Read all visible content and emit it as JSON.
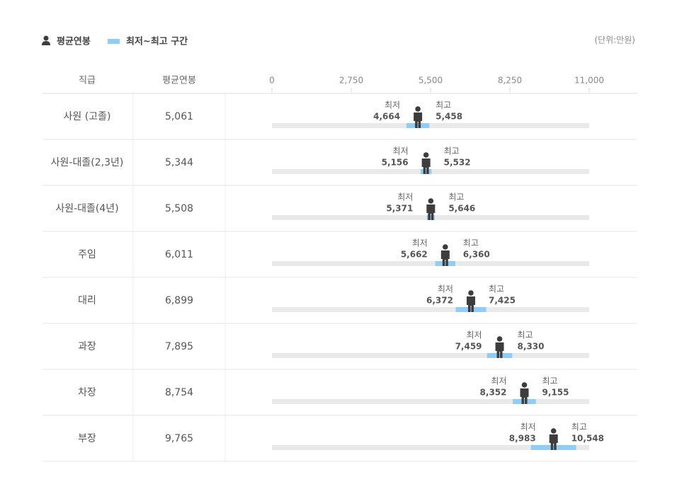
{
  "chart_data": {
    "type": "range",
    "unit": "(단위:만원)",
    "columns": [
      "직급",
      "평균연봉"
    ],
    "categories": [
      "사원 (고졸)",
      "사원-대졸(2,3년)",
      "사원-대졸(4년)",
      "주임",
      "대리",
      "과장",
      "차장",
      "부장"
    ],
    "xlim": [
      0,
      11000
    ],
    "xticks": [
      0,
      {
        "value": 2750,
        "label": "2,750"
      },
      {
        "value": 5500,
        "label": "5,500"
      },
      {
        "value": 8250,
        "label": "8,250"
      },
      {
        "value": 11000,
        "label": "11,000"
      }
    ],
    "series": [
      {
        "name": "평균연봉",
        "color": "#3d3d3d",
        "values": [
          5061,
          5344,
          5508,
          6011,
          6899,
          7895,
          8754,
          9765
        ],
        "value_labels": [
          "5,061",
          "5,344",
          "5,508",
          "6,011",
          "6,899",
          "7,895",
          "8,754",
          "9,765"
        ]
      },
      {
        "name": "최저~최고 구간",
        "color": "#8fcdf7",
        "low_name": "최저",
        "high_name": "최고",
        "low": [
          4664,
          5156,
          5371,
          5662,
          6372,
          7459,
          8352,
          8983
        ],
        "low_labels": [
          "4,664",
          "5,156",
          "5,371",
          "5,662",
          "6,372",
          "7,459",
          "8,352",
          "8,983"
        ],
        "high": [
          5458,
          5532,
          5646,
          6360,
          7425,
          8330,
          9155,
          10548
        ],
        "high_labels": [
          "5,458",
          "5,532",
          "5,646",
          "6,360",
          "7,425",
          "8,330",
          "9,155",
          "10,548"
        ]
      }
    ]
  }
}
